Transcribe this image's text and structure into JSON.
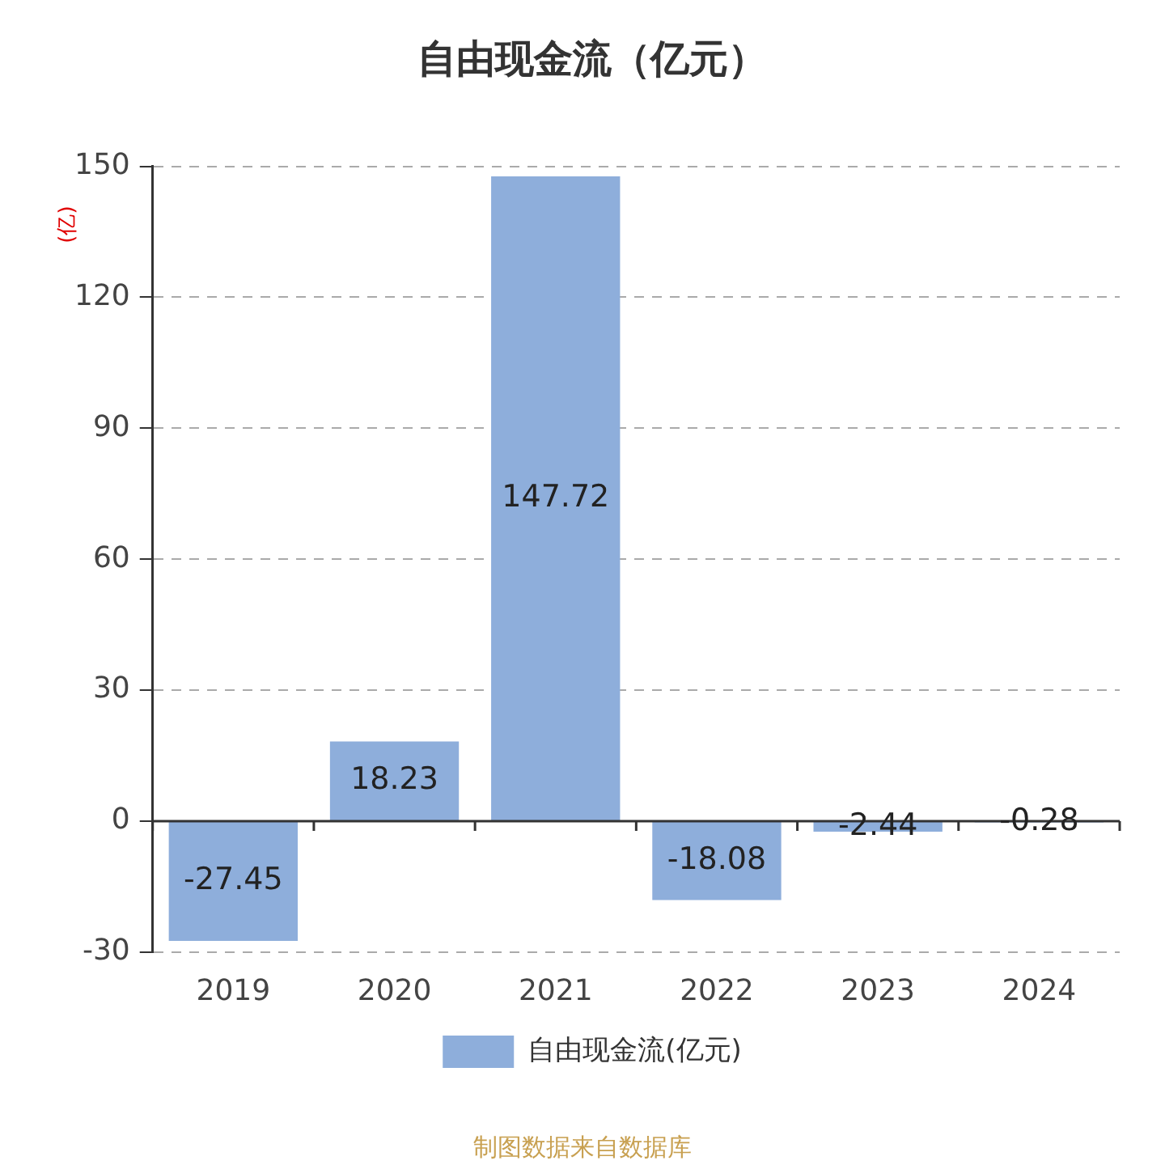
{
  "chart_data": {
    "type": "bar",
    "title": "自由现金流（亿元）",
    "ylabel": "(亿)",
    "categories": [
      "2019",
      "2020",
      "2021",
      "2022",
      "2023",
      "2024"
    ],
    "series": [
      {
        "name": "自由现金流(亿元)",
        "color": "#8eaedb",
        "values": [
          -27.45,
          18.23,
          147.72,
          -18.08,
          -2.44,
          -0.28
        ]
      }
    ],
    "ylim": [
      -30,
      150
    ],
    "yticks": [
      -30,
      0,
      30,
      60,
      90,
      120,
      150
    ],
    "grid": "y",
    "legend": "bottom",
    "data_labels": true,
    "annotations": [
      "制图数据来自数据库"
    ]
  }
}
